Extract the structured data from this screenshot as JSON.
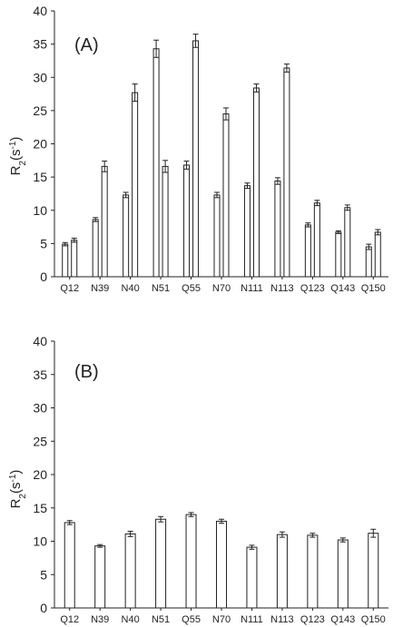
{
  "chart_data": [
    {
      "type": "bar",
      "panel_label": "(A)",
      "ylabel": "R₂(s⁻¹)",
      "ylabel_main": "R",
      "ylabel_sub": "2",
      "ylabel_rest": "(s",
      "ylabel_sup": "-1",
      "ylabel_close": ")",
      "ylim": [
        0,
        40
      ],
      "yticks": [
        0,
        5,
        10,
        15,
        20,
        25,
        30,
        35,
        40
      ],
      "categories": [
        "Q12",
        "N39",
        "N40",
        "N51",
        "Q55",
        "N70",
        "N111",
        "N113",
        "Q123",
        "Q143",
        "Q150"
      ],
      "series": [
        {
          "values": [
            4.9,
            8.6,
            12.3,
            34.3,
            16.8,
            12.3,
            13.7,
            14.4,
            7.8,
            6.7,
            4.5
          ],
          "errors": [
            0.25,
            0.3,
            0.4,
            1.3,
            0.6,
            0.4,
            0.4,
            0.5,
            0.3,
            0.2,
            0.4
          ]
        },
        {
          "values": [
            5.5,
            16.6,
            27.7,
            16.6,
            35.5,
            24.5,
            28.4,
            31.4,
            11.1,
            10.4,
            6.7
          ],
          "errors": [
            0.3,
            0.8,
            1.3,
            0.9,
            1.0,
            0.9,
            0.6,
            0.6,
            0.4,
            0.4,
            0.4
          ]
        }
      ]
    },
    {
      "type": "bar",
      "panel_label": "(B)",
      "ylabel": "R₂(s⁻¹)",
      "ylabel_main": "R",
      "ylabel_sub": "2",
      "ylabel_rest": "(s",
      "ylabel_sup": "-1",
      "ylabel_close": ")",
      "ylim": [
        0,
        40
      ],
      "yticks": [
        0,
        5,
        10,
        15,
        20,
        25,
        30,
        35,
        40
      ],
      "categories": [
        "Q12",
        "N39",
        "N40",
        "N51",
        "Q55",
        "N70",
        "N111",
        "N113",
        "Q123",
        "Q143",
        "Q150"
      ],
      "series": [
        {
          "values": [
            12.8,
            9.3,
            11.1,
            13.3,
            14.0,
            13.0,
            9.1,
            11.0,
            10.9,
            10.2,
            11.2
          ],
          "errors": [
            0.3,
            0.2,
            0.4,
            0.4,
            0.3,
            0.3,
            0.3,
            0.4,
            0.3,
            0.3,
            0.6
          ]
        }
      ]
    }
  ]
}
